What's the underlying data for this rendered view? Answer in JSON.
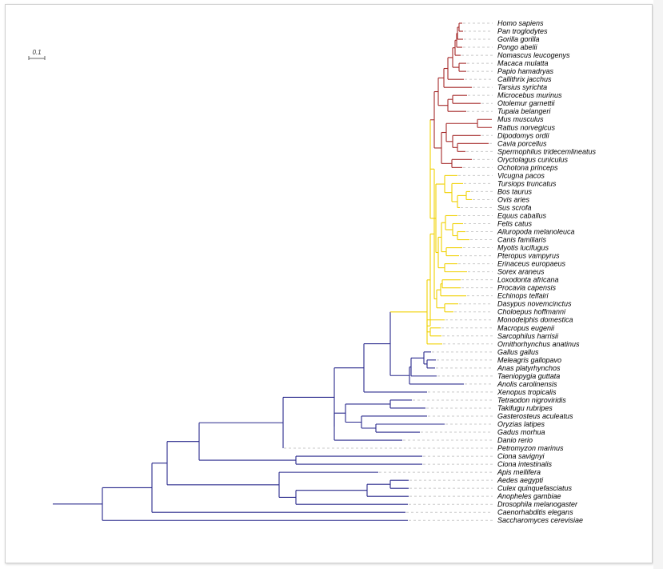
{
  "scale_bar": {
    "label": "0.1"
  },
  "colors": {
    "primates_rodents": "#a52a2a",
    "mammals": "#f0d000",
    "vertebrates": "#28288c",
    "dashed": "#c8c8c8"
  },
  "leaves": [
    {
      "id": "hsa",
      "name": "Homo sapiens",
      "group": "r"
    },
    {
      "id": "ptr",
      "name": "Pan troglodytes",
      "group": "r"
    },
    {
      "id": "ggo",
      "name": "Gorilla gorilla",
      "group": "r"
    },
    {
      "id": "pab",
      "name": "Pongo abelii",
      "group": "r"
    },
    {
      "id": "nle",
      "name": "Nomascus leucogenys",
      "group": "r"
    },
    {
      "id": "mml",
      "name": "Macaca mulatta",
      "group": "r"
    },
    {
      "id": "pha",
      "name": "Papio hamadryas",
      "group": "r"
    },
    {
      "id": "cja",
      "name": "Callithrix jacchus",
      "group": "r"
    },
    {
      "id": "tsy",
      "name": "Tarsius syrichta",
      "group": "r"
    },
    {
      "id": "mmu2",
      "name": "Microcebus murinus",
      "group": "r"
    },
    {
      "id": "oga",
      "name": "Otolemur garnettii",
      "group": "r"
    },
    {
      "id": "tbe",
      "name": "Tupaia belangeri",
      "group": "r"
    },
    {
      "id": "mmu",
      "name": "Mus musculus",
      "group": "r"
    },
    {
      "id": "rno",
      "name": "Rattus norvegicus",
      "group": "r"
    },
    {
      "id": "dor",
      "name": "Dipodomys ordii",
      "group": "r"
    },
    {
      "id": "cpo",
      "name": "Cavia porcellus",
      "group": "r"
    },
    {
      "id": "str",
      "name": "Spermophilus tridecemlineatus",
      "group": "r"
    },
    {
      "id": "ocu",
      "name": "Oryctolagus cuniculus",
      "group": "r"
    },
    {
      "id": "opr",
      "name": "Ochotona princeps",
      "group": "r"
    },
    {
      "id": "vpa",
      "name": "Vicugna pacos",
      "group": "y"
    },
    {
      "id": "ttr",
      "name": "Tursiops truncatus",
      "group": "y"
    },
    {
      "id": "bta",
      "name": "Bos taurus",
      "group": "y"
    },
    {
      "id": "oar",
      "name": "Ovis aries",
      "group": "y"
    },
    {
      "id": "ssc",
      "name": "Sus scrofa",
      "group": "y"
    },
    {
      "id": "eca",
      "name": "Equus caballus",
      "group": "y"
    },
    {
      "id": "fca",
      "name": "Felis catus",
      "group": "y"
    },
    {
      "id": "aml",
      "name": "Ailuropoda melanoleuca",
      "group": "y"
    },
    {
      "id": "cfa",
      "name": "Canis familiaris",
      "group": "y"
    },
    {
      "id": "mlu",
      "name": "Myotis lucifugus",
      "group": "y"
    },
    {
      "id": "pva",
      "name": "Pteropus vampyrus",
      "group": "y"
    },
    {
      "id": "eeu",
      "name": "Erinaceus europaeus",
      "group": "y"
    },
    {
      "id": "sar",
      "name": "Sorex araneus",
      "group": "y"
    },
    {
      "id": "laf",
      "name": "Loxodonta africana",
      "group": "y"
    },
    {
      "id": "pca",
      "name": "Procavia capensis",
      "group": "y"
    },
    {
      "id": "ete",
      "name": "Echinops telfairi",
      "group": "y"
    },
    {
      "id": "dno",
      "name": "Dasypus novemcinctus",
      "group": "y"
    },
    {
      "id": "cho",
      "name": "Choloepus hoffmanni",
      "group": "y"
    },
    {
      "id": "mdo",
      "name": "Monodelphis domestica",
      "group": "y"
    },
    {
      "id": "meu",
      "name": "Macropus eugenii",
      "group": "y"
    },
    {
      "id": "sha",
      "name": "Sarcophilus harrisii",
      "group": "y"
    },
    {
      "id": "oan",
      "name": "Ornithorhynchus anatinus",
      "group": "y"
    },
    {
      "id": "gga",
      "name": "Gallus gallus",
      "group": "b"
    },
    {
      "id": "mga",
      "name": "Meleagris gallopavo",
      "group": "b"
    },
    {
      "id": "apl",
      "name": "Anas platyrhynchos",
      "group": "b"
    },
    {
      "id": "tgu",
      "name": "Taeniopygia guttata",
      "group": "b"
    },
    {
      "id": "aca",
      "name": "Anolis carolinensis",
      "group": "b"
    },
    {
      "id": "xtr",
      "name": "Xenopus tropicalis",
      "group": "b"
    },
    {
      "id": "tni",
      "name": "Tetraodon nigroviridis",
      "group": "b"
    },
    {
      "id": "tru",
      "name": "Takifugu rubripes",
      "group": "b"
    },
    {
      "id": "gac",
      "name": "Gasterosteus aculeatus",
      "group": "b"
    },
    {
      "id": "ola",
      "name": "Oryzias latipes",
      "group": "b"
    },
    {
      "id": "gmo",
      "name": "Gadus morhua",
      "group": "b"
    },
    {
      "id": "dre",
      "name": "Danio rerio",
      "group": "b"
    },
    {
      "id": "pma",
      "name": "Petromyzon marinus",
      "group": "b"
    },
    {
      "id": "csa",
      "name": "Ciona savignyi",
      "group": "b"
    },
    {
      "id": "cin",
      "name": "Ciona intestinalis",
      "group": "b"
    },
    {
      "id": "ame",
      "name": "Apis mellifera",
      "group": "b"
    },
    {
      "id": "aae",
      "name": "Aedes aegypti",
      "group": "b"
    },
    {
      "id": "cqu",
      "name": "Culex quinquefasciatus",
      "group": "b"
    },
    {
      "id": "aga",
      "name": "Anopheles gambiae",
      "group": "b"
    },
    {
      "id": "dme",
      "name": "Drosophila melanogaster",
      "group": "b"
    },
    {
      "id": "cel",
      "name": "Caenorhabditis elegans",
      "group": "b"
    },
    {
      "id": "sce",
      "name": "Saccharomyces cerevisiae",
      "group": "b"
    }
  ]
}
